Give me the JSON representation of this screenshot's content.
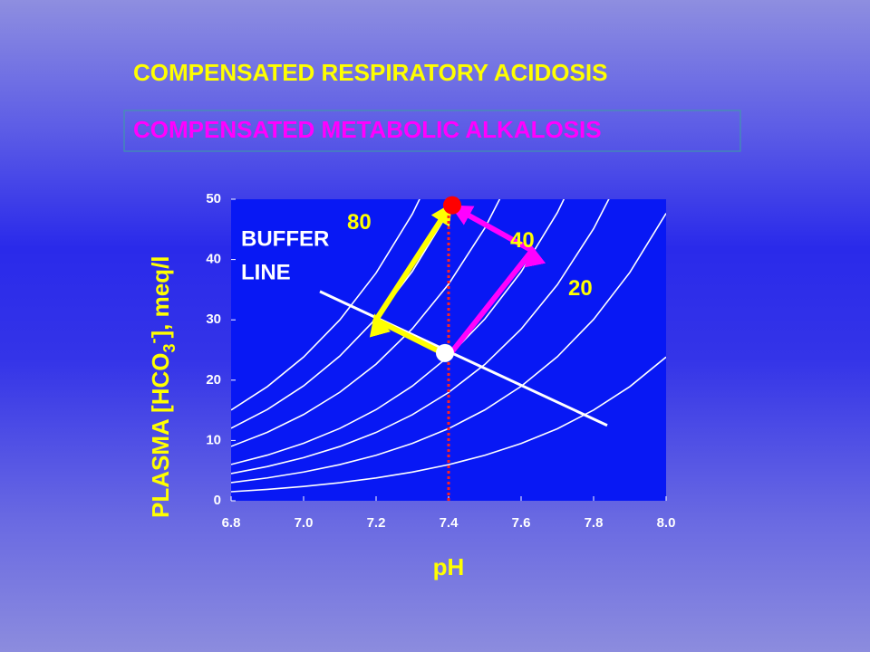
{
  "chart_data": {
    "type": "line",
    "title": "COMPENSATED  RESPIRATORY  ACIDOSIS",
    "title_color": "#ffff00",
    "subtitle": "COMPENSATED  METABOLIC  ALKALOSIS",
    "subtitle_color": "#ff00ff",
    "xlabel": "pH",
    "ylabel_parts": [
      "PLASMA  [HCO",
      "3",
      "-",
      "],  meq/l"
    ],
    "plot_color": "#0818f4",
    "xlim": [
      6.8,
      8.0
    ],
    "ylim": [
      0,
      50
    ],
    "xticks": [
      6.8,
      {
        "value": 7,
        "label": "7.0"
      },
      7.2,
      7.4,
      7.6,
      7.8,
      {
        "value": 8,
        "label": "8.0"
      }
    ],
    "yticks": [
      0,
      10,
      20,
      30,
      40,
      50
    ],
    "x": [
      6.8,
      6.9,
      7.0,
      7.1,
      7.2,
      7.3,
      7.4,
      7.5,
      7.6,
      7.7,
      7.8,
      7.9,
      8.0
    ],
    "series": [
      {
        "color": "#ffffff",
        "values": [
          1.5,
          1.89,
          2.38,
          3.0,
          3.78,
          4.76,
          5.99,
          7.54,
          9.49,
          11.94,
          15.04,
          18.93,
          23.83
        ]
      },
      {
        "color": "#ffffff",
        "values": [
          3.01,
          3.79,
          4.77,
          6.0,
          7.55,
          9.51,
          11.97,
          15.07,
          18.97,
          23.89,
          30.07,
          37.86,
          47.66
        ]
      },
      {
        "color": "#ffffff",
        "values": [
          4.51,
          5.68,
          7.15,
          9.0,
          11.33,
          14.27,
          17.96,
          22.61,
          28.46,
          35.83,
          45.11,
          56.79,
          null
        ]
      },
      {
        "color": "#ffffff",
        "values": [
          6.02,
          7.57,
          9.53,
          12.0,
          15.11,
          19.02,
          23.94,
          30.14,
          37.95,
          47.77,
          60.14,
          null,
          null
        ]
      },
      {
        "color": "#ffffff",
        "values": [
          9.02,
          11.36,
          14.3,
          18.0,
          22.66,
          28.53,
          35.92,
          45.22,
          56.92,
          null,
          null,
          null,
          null
        ]
      },
      {
        "color": "#ffffff",
        "values": [
          12.03,
          15.14,
          19.06,
          24.0,
          30.22,
          38.04,
          47.89,
          60.29,
          null,
          null,
          null,
          null,
          null
        ]
      },
      {
        "color": "#ffffff",
        "values": [
          15.04,
          18.93,
          23.83,
          30.0,
          37.77,
          47.55,
          59.86,
          null,
          null,
          null,
          null,
          null,
          null
        ]
      }
    ],
    "buffer_line": {
      "color": "#ffffff",
      "x": [
        7.045,
        7.8375
      ],
      "values": [
        34.7,
        12.5
      ]
    },
    "buffer_label": [
      "BUFFER",
      "LINE"
    ],
    "reference_x": {
      "value": 7.4,
      "color": "#ff2020"
    },
    "arrows": [
      {
        "color": "#ffff00",
        "x": [
          7.4,
          7.2,
          7.4
        ],
        "values": [
          24,
          30,
          48.5
        ]
      },
      {
        "color": "#ff00ff",
        "x": [
          7.4,
          7.63,
          7.42
        ],
        "values": [
          24,
          41.5,
          48.5
        ]
      }
    ],
    "points": [
      {
        "color": "#ffffff",
        "x": 7.39,
        "value": 24.5
      },
      {
        "color": "#ff0000",
        "x": 7.41,
        "value": 49
      }
    ],
    "curve_labels": [
      {
        "text": "80",
        "color": "#ffff00",
        "x": 7.12,
        "y": 46
      },
      {
        "text": "40",
        "color": "#ffff00",
        "x": 7.57,
        "y": 43
      },
      {
        "text": "20",
        "color": "#ffff00",
        "x": 7.73,
        "y": 35
      }
    ]
  }
}
